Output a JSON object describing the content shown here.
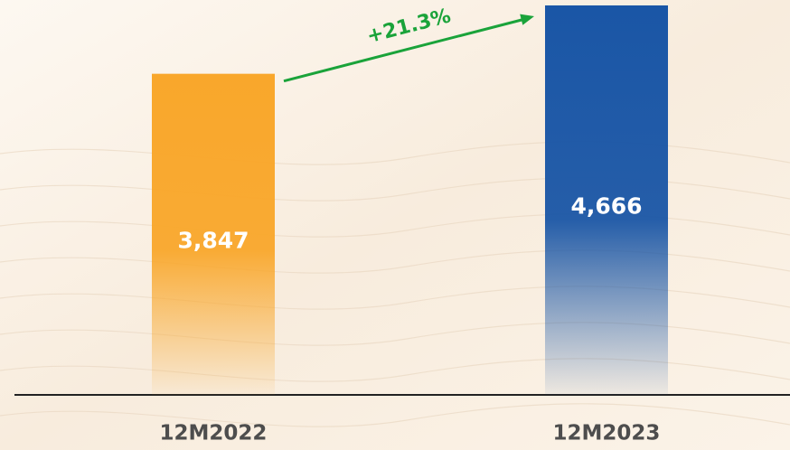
{
  "chart_data": {
    "type": "bar",
    "categories": [
      "12M2022",
      "12M2023"
    ],
    "values": [
      3847,
      4666
    ],
    "value_labels": [
      "3,847",
      "4,666"
    ],
    "colors": [
      "#f9a72b",
      "#1a56a6"
    ],
    "annotation": "+21.3%",
    "annotation_color": "#1aa33a"
  }
}
